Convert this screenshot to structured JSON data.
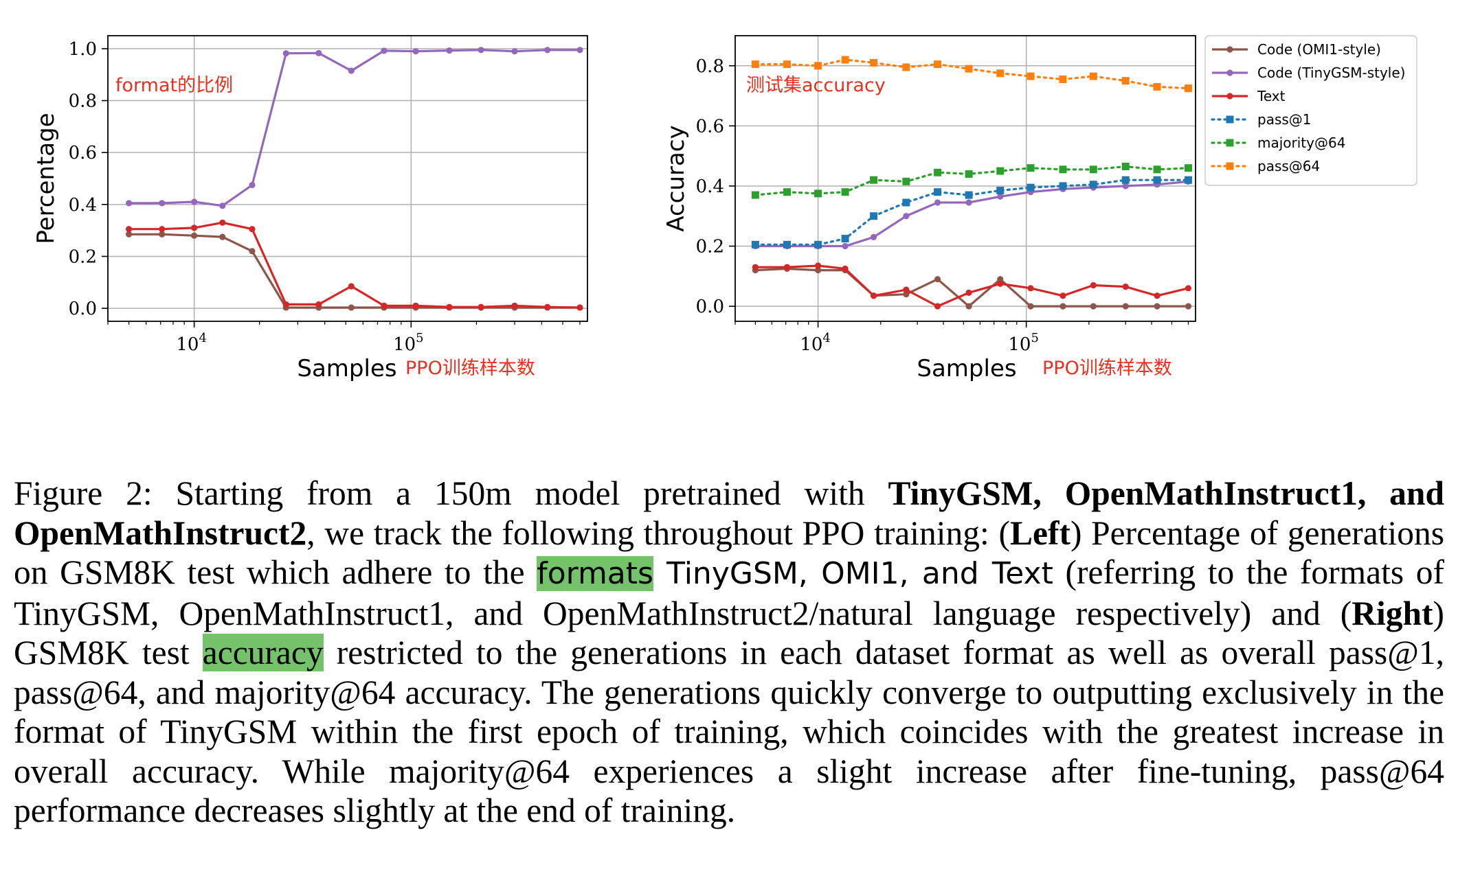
{
  "charts": [
    {
      "id": "left",
      "ylabel": "Percentage",
      "xlabel": "Samples",
      "annotation": "format的比例",
      "xlabel_note": "PPO训练样本数",
      "yticks": [
        {
          "v": 0.0,
          "label": "0.0"
        },
        {
          "v": 0.2,
          "label": "0.2"
        },
        {
          "v": 0.4,
          "label": "0.4"
        },
        {
          "v": 0.6,
          "label": "0.6"
        },
        {
          "v": 0.8,
          "label": "0.8"
        },
        {
          "v": 1.0,
          "label": "1.0"
        }
      ],
      "xticks": [
        {
          "v": 10000,
          "base": "10",
          "exp": "4"
        },
        {
          "v": 100000,
          "base": "10",
          "exp": "5"
        }
      ]
    },
    {
      "id": "right",
      "ylabel": "Accuracy",
      "xlabel": "Samples",
      "annotation": "测试集accuracy",
      "xlabel_note": "PPO训练样本数",
      "yticks": [
        {
          "v": 0.0,
          "label": "0.0"
        },
        {
          "v": 0.2,
          "label": "0.2"
        },
        {
          "v": 0.4,
          "label": "0.4"
        },
        {
          "v": 0.6,
          "label": "0.6"
        },
        {
          "v": 0.8,
          "label": "0.8"
        }
      ],
      "xticks": [
        {
          "v": 10000,
          "base": "10",
          "exp": "4"
        },
        {
          "v": 100000,
          "base": "10",
          "exp": "5"
        }
      ],
      "legend": [
        {
          "label": "Code (OMI1-style)",
          "color": "#8c564b",
          "style": "solid-dot"
        },
        {
          "label": "Code (TinyGSM-style)",
          "color": "#9467bd",
          "style": "solid-dot"
        },
        {
          "label": "Text",
          "color": "#d62728",
          "style": "solid-dot"
        },
        {
          "label": "pass@1",
          "color": "#1f77b4",
          "style": "dotted-square"
        },
        {
          "label": "majority@64",
          "color": "#2ca02c",
          "style": "dotted-square"
        },
        {
          "label": "pass@64",
          "color": "#ff7f0e",
          "style": "dotted-square"
        }
      ]
    }
  ],
  "chart_data": [
    {
      "type": "line",
      "ylabel": "Percentage",
      "xlabel": "Samples",
      "xscale": "log",
      "xlim": [
        4000,
        650000
      ],
      "ylim": [
        -0.05,
        1.05
      ],
      "grid": true,
      "x": [
        5000,
        7100,
        10000,
        13500,
        18500,
        26500,
        37500,
        53000,
        75000,
        105000,
        150000,
        210000,
        300000,
        425000,
        600000
      ],
      "series": [
        {
          "name": "Code (OMI1-style)",
          "color": "#8c564b",
          "values": [
            0.285,
            0.285,
            0.28,
            0.275,
            0.22,
            0.003,
            0.003,
            0.003,
            0.003,
            0.003,
            0.003,
            0.003,
            0.003,
            0.003,
            0.003
          ]
        },
        {
          "name": "Code (TinyGSM-style)",
          "color": "#9467bd",
          "values": [
            0.405,
            0.405,
            0.41,
            0.395,
            0.475,
            0.982,
            0.983,
            0.915,
            0.992,
            0.99,
            0.993,
            0.995,
            0.99,
            0.995,
            0.995
          ]
        },
        {
          "name": "Text",
          "color": "#d62728",
          "values": [
            0.305,
            0.305,
            0.31,
            0.33,
            0.305,
            0.015,
            0.015,
            0.085,
            0.01,
            0.01,
            0.005,
            0.005,
            0.01,
            0.005,
            0.003
          ]
        }
      ]
    },
    {
      "type": "line",
      "ylabel": "Accuracy",
      "xlabel": "Samples",
      "xscale": "log",
      "xlim": [
        4000,
        650000
      ],
      "ylim": [
        -0.05,
        0.9
      ],
      "grid": true,
      "legend_position": "upper right, outside",
      "x": [
        5000,
        7100,
        10000,
        13500,
        18500,
        26500,
        37500,
        53000,
        75000,
        105000,
        150000,
        210000,
        300000,
        425000,
        600000
      ],
      "series": [
        {
          "name": "Code (OMI1-style)",
          "color": "#8c564b",
          "style": "solid-dot",
          "values": [
            0.12,
            0.125,
            0.12,
            0.12,
            0.035,
            0.04,
            0.09,
            0.0,
            0.09,
            0.0,
            0.0,
            0.0,
            0.0,
            0.0,
            0.0
          ]
        },
        {
          "name": "Code (TinyGSM-style)",
          "color": "#9467bd",
          "style": "solid-dot",
          "values": [
            0.2,
            0.2,
            0.2,
            0.2,
            0.23,
            0.3,
            0.345,
            0.345,
            0.365,
            0.38,
            0.39,
            0.395,
            0.4,
            0.405,
            0.415
          ]
        },
        {
          "name": "Text",
          "color": "#d62728",
          "style": "solid-dot",
          "values": [
            0.13,
            0.13,
            0.135,
            0.125,
            0.035,
            0.055,
            0.0,
            0.045,
            0.075,
            0.06,
            0.035,
            0.07,
            0.065,
            0.035,
            0.06
          ]
        },
        {
          "name": "pass@1",
          "color": "#1f77b4",
          "style": "dotted-square",
          "values": [
            0.205,
            0.205,
            0.205,
            0.225,
            0.3,
            0.345,
            0.38,
            0.37,
            0.385,
            0.395,
            0.4,
            0.405,
            0.42,
            0.42,
            0.42
          ]
        },
        {
          "name": "majority@64",
          "color": "#2ca02c",
          "style": "dotted-square",
          "values": [
            0.37,
            0.38,
            0.375,
            0.38,
            0.42,
            0.415,
            0.445,
            0.44,
            0.45,
            0.46,
            0.455,
            0.455,
            0.465,
            0.455,
            0.46
          ]
        },
        {
          "name": "pass@64",
          "color": "#ff7f0e",
          "style": "dotted-square",
          "values": [
            0.805,
            0.805,
            0.8,
            0.82,
            0.81,
            0.795,
            0.805,
            0.79,
            0.775,
            0.765,
            0.755,
            0.765,
            0.75,
            0.73,
            0.725
          ]
        }
      ]
    }
  ],
  "caption": {
    "p1": "Figure 2: Starting from a 150m model pretrained with ",
    "b1": "TinyGSM, OpenMathInstruct1, and OpenMathInstruct2",
    "p2": ", we track the following throughout PPO training: (",
    "b2": "Left",
    "p3": ") Percentage of generations on GSM8K test which adhere to the ",
    "hl1": "formats",
    "s1": " TinyGSM, OMI1, and Text",
    "p4": " (referring to the formats of TinyGSM, OpenMathInstruct1, and OpenMathInstruct2/natural language respectively) and (",
    "b3": "Right",
    "p5": ") GSM8K test ",
    "hl2": "accuracy",
    "p6": " restricted to the generations in each dataset format as well as overall pass@1, pass@64, and majority@64 accuracy. The generations quickly converge to outputting exclusively in the format of TinyGSM within the first epoch of training, which coincides with the greatest increase in overall accuracy. While majority@64 experiences a slight increase after fine-tuning, pass@64 performance decreases slightly at the end of training."
  }
}
